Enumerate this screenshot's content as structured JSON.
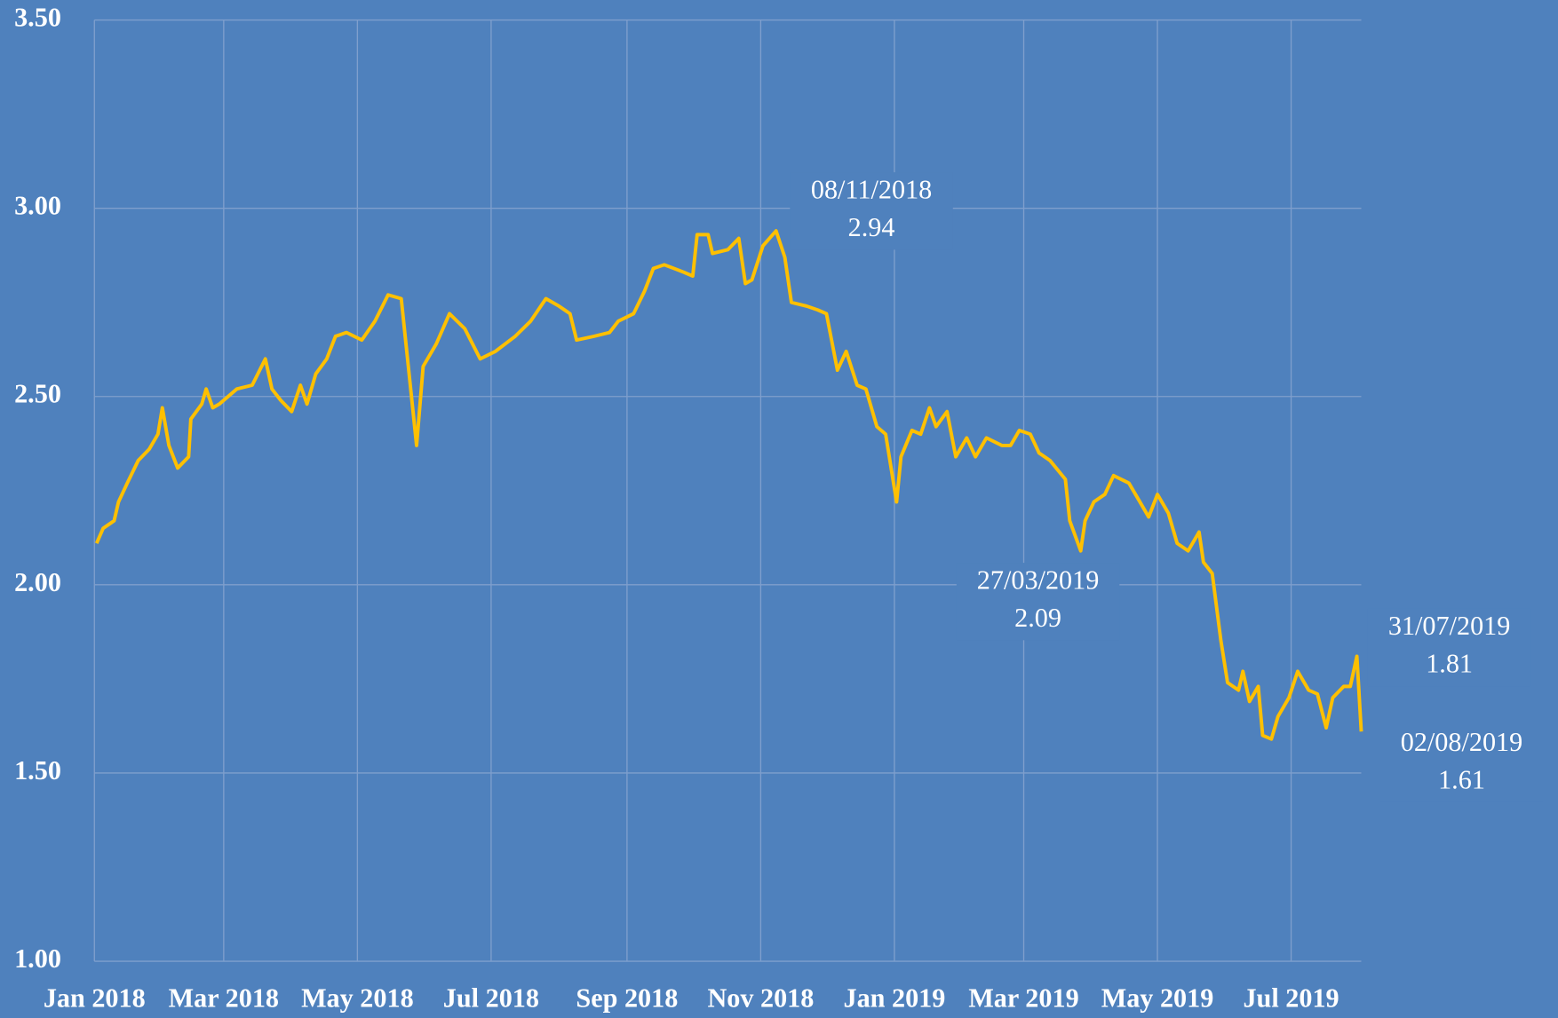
{
  "chart_data": {
    "type": "line",
    "x": [
      "2018-01-02",
      "2018-01-05",
      "2018-01-10",
      "2018-01-12",
      "2018-01-16",
      "2018-01-21",
      "2018-01-26",
      "2018-01-30",
      "2018-02-01",
      "2018-02-04",
      "2018-02-08",
      "2018-02-13",
      "2018-02-14",
      "2018-02-19",
      "2018-02-21",
      "2018-02-24",
      "2018-02-27",
      "2018-03-07",
      "2018-03-14",
      "2018-03-20",
      "2018-03-23",
      "2018-03-27",
      "2018-04-01",
      "2018-04-05",
      "2018-04-08",
      "2018-04-12",
      "2018-04-17",
      "2018-04-21",
      "2018-04-26",
      "2018-05-03",
      "2018-05-09",
      "2018-05-15",
      "2018-05-21",
      "2018-05-28",
      "2018-05-31",
      "2018-06-06",
      "2018-06-12",
      "2018-06-19",
      "2018-06-26",
      "2018-07-03",
      "2018-07-12",
      "2018-07-19",
      "2018-07-26",
      "2018-08-01",
      "2018-08-06",
      "2018-08-09",
      "2018-08-17",
      "2018-08-24",
      "2018-08-28",
      "2018-09-04",
      "2018-09-09",
      "2018-09-13",
      "2018-09-18",
      "2018-09-27",
      "2018-10-01",
      "2018-10-03",
      "2018-10-08",
      "2018-10-10",
      "2018-10-17",
      "2018-10-22",
      "2018-10-25",
      "2018-10-28",
      "2018-11-02",
      "2018-11-08",
      "2018-11-12",
      "2018-11-15",
      "2018-11-22",
      "2018-11-27",
      "2018-12-01",
      "2018-12-06",
      "2018-12-10",
      "2018-12-15",
      "2018-12-19",
      "2018-12-24",
      "2018-12-28",
      "2019-01-02",
      "2019-01-04",
      "2019-01-09",
      "2019-01-13",
      "2019-01-17",
      "2019-01-20",
      "2019-01-25",
      "2019-01-29",
      "2019-02-03",
      "2019-02-07",
      "2019-02-12",
      "2019-02-19",
      "2019-02-23",
      "2019-02-27",
      "2019-03-04",
      "2019-03-08",
      "2019-03-13",
      "2019-03-20",
      "2019-03-22",
      "2019-03-27",
      "2019-03-29",
      "2019-04-02",
      "2019-04-07",
      "2019-04-11",
      "2019-04-18",
      "2019-04-23",
      "2019-04-27",
      "2019-05-01",
      "2019-05-06",
      "2019-05-10",
      "2019-05-15",
      "2019-05-20",
      "2019-05-22",
      "2019-05-26",
      "2019-05-30",
      "2019-06-02",
      "2019-06-07",
      "2019-06-09",
      "2019-06-12",
      "2019-06-16",
      "2019-06-18",
      "2019-06-22",
      "2019-06-25",
      "2019-06-30",
      "2019-07-04",
      "2019-07-09",
      "2019-07-13",
      "2019-07-17",
      "2019-07-20",
      "2019-07-25",
      "2019-07-28",
      "2019-07-31",
      "2019-08-02"
    ],
    "series": [
      {
        "color": "#ffc000",
        "values": [
          2.11,
          2.15,
          2.17,
          2.22,
          2.27,
          2.33,
          2.36,
          2.4,
          2.47,
          2.37,
          2.31,
          2.34,
          2.44,
          2.48,
          2.52,
          2.47,
          2.48,
          2.52,
          2.53,
          2.6,
          2.52,
          2.49,
          2.46,
          2.53,
          2.48,
          2.56,
          2.6,
          2.66,
          2.67,
          2.65,
          2.7,
          2.77,
          2.76,
          2.37,
          2.58,
          2.64,
          2.72,
          2.68,
          2.6,
          2.62,
          2.66,
          2.7,
          2.76,
          2.74,
          2.72,
          2.65,
          2.66,
          2.67,
          2.7,
          2.72,
          2.78,
          2.84,
          2.85,
          2.83,
          2.82,
          2.93,
          2.93,
          2.88,
          2.89,
          2.92,
          2.8,
          2.81,
          2.9,
          2.94,
          2.87,
          2.75,
          2.74,
          2.73,
          2.72,
          2.57,
          2.62,
          2.53,
          2.52,
          2.42,
          2.4,
          2.22,
          2.34,
          2.41,
          2.4,
          2.47,
          2.42,
          2.46,
          2.34,
          2.39,
          2.34,
          2.39,
          2.37,
          2.37,
          2.41,
          2.4,
          2.35,
          2.33,
          2.28,
          2.17,
          2.09,
          2.17,
          2.22,
          2.24,
          2.29,
          2.27,
          2.22,
          2.18,
          2.24,
          2.19,
          2.11,
          2.09,
          2.14,
          2.06,
          2.03,
          1.85,
          1.74,
          1.72,
          1.77,
          1.69,
          1.73,
          1.6,
          1.59,
          1.65,
          1.7,
          1.77,
          1.72,
          1.71,
          1.62,
          1.7,
          1.73,
          1.73,
          1.81,
          1.61
        ]
      }
    ],
    "xlim": [
      "2018-01-01",
      "2019-08-02"
    ],
    "xticks": [
      {
        "value": "2018-01-01",
        "label": "Jan 2018"
      },
      {
        "value": "2018-03-01",
        "label": "Mar 2018"
      },
      {
        "value": "2018-05-01",
        "label": "May 2018"
      },
      {
        "value": "2018-07-01",
        "label": "Jul 2018"
      },
      {
        "value": "2018-09-01",
        "label": "Sep 2018"
      },
      {
        "value": "2018-11-01",
        "label": "Nov 2018"
      },
      {
        "value": "2019-01-01",
        "label": "Jan 2019"
      },
      {
        "value": "2019-03-01",
        "label": "Mar 2019"
      },
      {
        "value": "2019-05-01",
        "label": "May 2019"
      },
      {
        "value": "2019-07-01",
        "label": "Jul 2019"
      }
    ],
    "ylim": [
      1.0,
      3.5
    ],
    "yticks": [
      {
        "value": 1.0,
        "label": "1.00"
      },
      {
        "value": 1.5,
        "label": "1.50"
      },
      {
        "value": 2.0,
        "label": "2.00"
      },
      {
        "value": 2.5,
        "label": "2.50"
      },
      {
        "value": 3.0,
        "label": "3.00"
      },
      {
        "value": 3.5,
        "label": "3.50"
      }
    ],
    "grid": true,
    "annotations": [
      {
        "text": "08/11/2018",
        "value": 2.94
      },
      {
        "text": "27/03/2019",
        "value": 2.09
      },
      {
        "text": "31/07/2019",
        "value": 1.81
      },
      {
        "text": "02/08/2019",
        "value": 1.61
      }
    ]
  }
}
